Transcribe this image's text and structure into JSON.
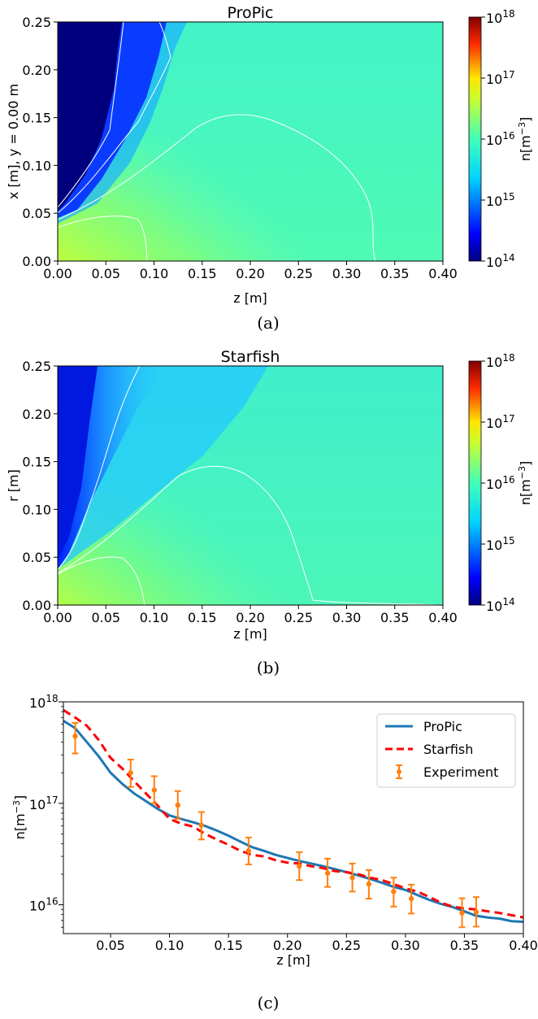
{
  "panels": [
    {
      "caption": "(a)",
      "chart_data": {
        "type": "heatmap",
        "title": "ProPic",
        "xlabel": "z [m]",
        "ylabel": "x [m], y = 0.00 m",
        "xlim": [
          0,
          0.4
        ],
        "ylim": [
          0,
          0.25
        ],
        "xticks": [
          "0.00",
          "0.05",
          "0.10",
          "0.15",
          "0.20",
          "0.25",
          "0.30",
          "0.35",
          "0.40"
        ],
        "yticks": [
          "0.00",
          "0.05",
          "0.10",
          "0.15",
          "0.20",
          "0.25"
        ],
        "colorbar": {
          "label": "n[m^-3]",
          "scale": "log",
          "range": [
            100000000000000.0,
            1e+18
          ],
          "colormap": "jet",
          "ticks": [
            "10^14",
            "10^15",
            "10^16",
            "10^17",
            "10^18"
          ]
        },
        "features": {
          "dark_region_edge_z_at_x": [
            [
              0.0,
              0.035
            ],
            [
              0.05,
              0.06
            ],
            [
              0.1,
              0.085
            ],
            [
              0.15,
              0.1
            ],
            [
              0.2,
              0.12
            ],
            [
              0.25,
              0.14
            ]
          ],
          "contour_1e16_z_end": 0.32,
          "contour_peak_x": 0.155
        }
      }
    },
    {
      "caption": "(b)",
      "chart_data": {
        "type": "heatmap",
        "title": "Starfish",
        "xlabel": "z [m]",
        "ylabel": "r [m]",
        "xlim": [
          0,
          0.4
        ],
        "ylim": [
          0,
          0.25
        ],
        "xticks": [
          "0.00",
          "0.05",
          "0.10",
          "0.15",
          "0.20",
          "0.25",
          "0.30",
          "0.35",
          "0.40"
        ],
        "yticks": [
          "0.00",
          "0.05",
          "0.10",
          "0.15",
          "0.20",
          "0.25"
        ],
        "colorbar": {
          "label": "n[m^-3]",
          "scale": "log",
          "range": [
            100000000000000.0,
            1e+18
          ],
          "colormap": "jet",
          "ticks": [
            "10^14",
            "10^15",
            "10^16",
            "10^17",
            "10^18"
          ]
        },
        "features": {
          "contour_1e16_z_end": 0.26,
          "contour_peak_x": 0.145
        }
      }
    },
    {
      "caption": "(c)",
      "chart_data": {
        "type": "line",
        "xlabel": "z [m]",
        "ylabel": "n[m^-3]",
        "yscale": "log",
        "xlim": [
          0.01,
          0.4
        ],
        "ylim": [
          5200000000000000.0,
          1e+18
        ],
        "xticks": [
          "0.05",
          "0.10",
          "0.15",
          "0.20",
          "0.25",
          "0.30",
          "0.35",
          "0.40"
        ],
        "yticks": [
          "10^16",
          "10^17",
          "10^18"
        ],
        "legend_position": "top-right",
        "series": [
          {
            "name": "ProPic",
            "color": "#1f77b4",
            "style": "solid",
            "x": [
              0.01,
              0.02,
              0.03,
              0.04,
              0.05,
              0.06,
              0.07,
              0.08,
              0.09,
              0.1,
              0.11,
              0.12,
              0.13,
              0.14,
              0.15,
              0.16,
              0.17,
              0.18,
              0.19,
              0.2,
              0.21,
              0.22,
              0.23,
              0.24,
              0.25,
              0.26,
              0.27,
              0.28,
              0.29,
              0.3,
              0.31,
              0.32,
              0.33,
              0.34,
              0.35,
              0.36,
              0.37,
              0.38,
              0.39,
              0.4
            ],
            "y": [
              6.5e+17,
              5.5e+17,
              4e+17,
              2.9e+17,
              2e+17,
              1.55e+17,
              1.25e+17,
              1.05e+17,
              8.8e+16,
              7.6e+16,
              7e+16,
              6.5e+16,
              6e+16,
              5.4e+16,
              4.8e+16,
              4.2e+16,
              3.7e+16,
              3.4e+16,
              3.1e+16,
              2.9e+16,
              2.7e+16,
              2.55e+16,
              2.4e+16,
              2.25e+16,
              2.1e+16,
              1.95e+16,
              1.8e+16,
              1.65e+16,
              1.5e+16,
              1.4e+16,
              1.25e+16,
              1.12e+16,
              1.02e+16,
              9500000000000000.0,
              8600000000000000.0,
              7800000000000000.0,
              7500000000000000.0,
              7300000000000000.0,
              6900000000000000.0,
              6800000000000000.0
            ]
          },
          {
            "name": "Starfish",
            "color": "#ff0000",
            "style": "dashed",
            "x": [
              0.01,
              0.02,
              0.03,
              0.04,
              0.05,
              0.06,
              0.07,
              0.08,
              0.09,
              0.1,
              0.11,
              0.12,
              0.13,
              0.14,
              0.15,
              0.16,
              0.17,
              0.18,
              0.19,
              0.2,
              0.21,
              0.22,
              0.23,
              0.24,
              0.25,
              0.26,
              0.27,
              0.28,
              0.29,
              0.3,
              0.31,
              0.32,
              0.33,
              0.34,
              0.35,
              0.36,
              0.37,
              0.38,
              0.39,
              0.4
            ],
            "y": [
              8.3e+17,
              7e+17,
              5.8e+17,
              4.2e+17,
              2.8e+17,
              2.2e+17,
              1.65e+17,
              1.25e+17,
              9.5e+16,
              7e+16,
              6.3e+16,
              5.9e+16,
              5e+16,
              4.4e+16,
              3.9e+16,
              3.4e+16,
              3.1e+16,
              3e+16,
              2.75e+16,
              2.6e+16,
              2.55e+16,
              2.4e+16,
              2.3e+16,
              2.15e+16,
              2.1e+16,
              2e+16,
              1.85e+16,
              1.75e+16,
              1.6e+16,
              1.45e+16,
              1.35e+16,
              1.2e+16,
              1.05e+16,
              9600000000000000.0,
              9200000000000000.0,
              9000000000000000.0,
              8600000000000000.0,
              8300000000000000.0,
              7900000000000000.0,
              7500000000000000.0
            ]
          },
          {
            "name": "Experiment",
            "color": "#ff7f0e",
            "style": "errorbar",
            "x": [
              0.02,
              0.067,
              0.087,
              0.107,
              0.127,
              0.167,
              0.21,
              0.234,
              0.255,
              0.269,
              0.29,
              0.305,
              0.348,
              0.36
            ],
            "y": [
              4.6e+17,
              2e+17,
              1.35e+17,
              9.6e+16,
              6.1e+16,
              3.4e+16,
              2.4e+16,
              2.05e+16,
              1.85e+16,
              1.6e+16,
              1.35e+16,
              1.15e+16,
              8300000000000000.0,
              8500000000000000.0
            ],
            "ylow": [
              3.1e+17,
              1.45e+17,
              1e+17,
              7e+16,
              4.4e+16,
              2.5e+16,
              1.75e+16,
              1.5e+16,
              1.35e+16,
              1.15e+16,
              9600000000000000.0,
              8200000000000000.0,
              6000000000000000.0,
              6100000000000000.0
            ],
            "yhigh": [
              6.2e+17,
              2.7e+17,
              1.85e+17,
              1.32e+17,
              8.2e+16,
              4.6e+16,
              3.3e+16,
              2.85e+16,
              2.55e+16,
              2.2e+16,
              1.85e+16,
              1.58e+16,
              1.16e+16,
              1.19e+16
            ]
          }
        ]
      }
    }
  ]
}
